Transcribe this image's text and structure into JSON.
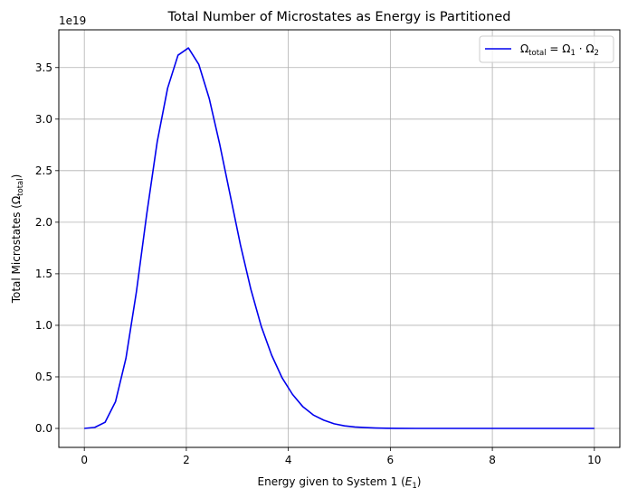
{
  "chart_data": {
    "type": "line",
    "title": "Total Number of Microstates as Energy is Partitioned",
    "xlabel_prefix": "Energy given to System 1 (",
    "xlabel_var": "E",
    "xlabel_sub": "1",
    "xlabel_suffix": ")",
    "ylabel_prefix": "Total Microstates (",
    "ylabel_var": "Ω",
    "ylabel_sub": "total",
    "ylabel_suffix": ")",
    "y_offset_text": "1e19",
    "xlim": [
      -0.5,
      10.5
    ],
    "ylim": [
      -0.184,
      3.866
    ],
    "grid": true,
    "legend_location": "top-right",
    "xticks": [
      0,
      2,
      4,
      6,
      8,
      10
    ],
    "xtick_labels": [
      "0",
      "2",
      "4",
      "6",
      "8",
      "10"
    ],
    "yticks": [
      0.0,
      0.5,
      1.0,
      1.5,
      2.0,
      2.5,
      3.0,
      3.5
    ],
    "ytick_labels": [
      "0.0",
      "0.5",
      "1.0",
      "1.5",
      "2.0",
      "2.5",
      "3.0",
      "3.5"
    ],
    "legend": {
      "sym": "Ω",
      "sub_total": "total",
      "eq": " = ",
      "dot": " · ",
      "sub_1": "1",
      "sub_2": "2"
    },
    "series": [
      {
        "color": "#0000ee",
        "x": [
          0,
          0.204,
          0.408,
          0.612,
          0.816,
          1.02,
          1.224,
          1.429,
          1.633,
          1.837,
          2.041,
          2.245,
          2.449,
          2.653,
          2.857,
          3.061,
          3.265,
          3.469,
          3.673,
          3.878,
          4.082,
          4.286,
          4.49,
          4.694,
          4.898,
          5.102,
          5.306,
          5.51,
          5.714,
          5.918,
          6.122,
          6.5,
          7.0,
          7.5,
          8.0,
          8.5,
          9.0,
          9.5,
          10.0
        ],
        "y": [
          0.0,
          0.01,
          0.06,
          0.26,
          0.68,
          1.32,
          2.08,
          2.78,
          3.3,
          3.62,
          3.69,
          3.53,
          3.2,
          2.76,
          2.27,
          1.78,
          1.35,
          0.99,
          0.71,
          0.49,
          0.33,
          0.21,
          0.13,
          0.08,
          0.045,
          0.025,
          0.014,
          0.008,
          0.004,
          0.002,
          0.001,
          0.0,
          0.0,
          0.0,
          0.0,
          0.0,
          0.0,
          0.0,
          0.0
        ]
      }
    ]
  }
}
